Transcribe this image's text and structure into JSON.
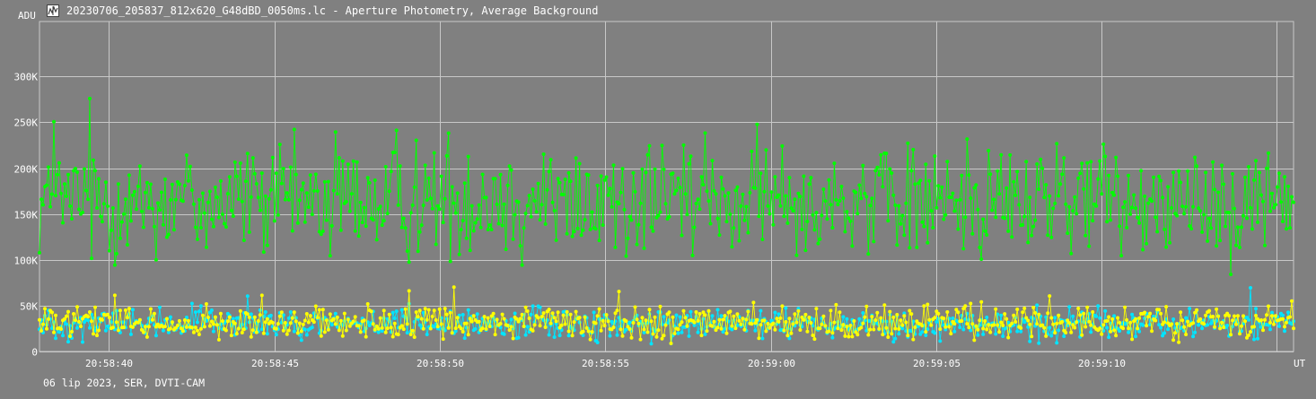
{
  "window": {
    "title": "20230706_205837_812x620_G48dBD_0050ms.lc - Aperture Photometry, Average Background",
    "icon": "lightcurve-app-icon"
  },
  "footer": {
    "info": "06 lip 2023, SER, DVTI-CAM"
  },
  "colors": {
    "background": "#808080",
    "grid": "#c8c8c8",
    "axis_text": "#ffffff",
    "series_green": "#00ff00",
    "series_cyan": "#00e5ff",
    "series_yellow": "#ffff00"
  },
  "chart_data": {
    "type": "line",
    "ylabel": "ADU",
    "xlabel": "UT",
    "yticks": [
      {
        "value": 0,
        "label": "0"
      },
      {
        "value": 50000,
        "label": "50K"
      },
      {
        "value": 100000,
        "label": "100K"
      },
      {
        "value": 150000,
        "label": "150K"
      },
      {
        "value": 200000,
        "label": "200K"
      },
      {
        "value": 250000,
        "label": "250K"
      },
      {
        "value": 300000,
        "label": "300K"
      }
    ],
    "xticks": [
      {
        "value": 40,
        "label": "20:58:40"
      },
      {
        "value": 45,
        "label": "20:58:45"
      },
      {
        "value": 50,
        "label": "20:58:50"
      },
      {
        "value": 55,
        "label": "20:58:55"
      },
      {
        "value": 60,
        "label": "20:59:00"
      },
      {
        "value": 65,
        "label": "20:59:05"
      },
      {
        "value": 70,
        "label": "20:59:10"
      }
    ],
    "xlim": [
      37.9,
      75.8
    ],
    "ylim": [
      0,
      360000
    ],
    "grid": true,
    "series": [
      {
        "name": "",
        "color": "#00ff00",
        "mean": 165000,
        "spread": 85000,
        "count": 700
      },
      {
        "name": "",
        "color": "#00e5ff",
        "mean": 30000,
        "spread": 22000,
        "count": 700
      },
      {
        "name": "",
        "color": "#ffff00",
        "mean": 31000,
        "spread": 24000,
        "count": 700
      }
    ]
  }
}
